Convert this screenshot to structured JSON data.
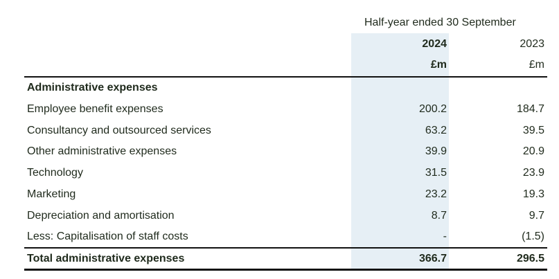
{
  "header": {
    "period": "Half-year ended 30 September",
    "col_current_year": "2024",
    "col_prior_year": "2023",
    "col_current_unit": "£m",
    "col_prior_unit": "£m"
  },
  "section_title": "Administrative expenses",
  "rows": [
    {
      "label": "Employee benefit expenses",
      "current": "200.2",
      "prior": "184.7"
    },
    {
      "label": "Consultancy and outsourced services",
      "current": "63.2",
      "prior": "39.5"
    },
    {
      "label": "Other administrative expenses",
      "current": "39.9",
      "prior": "20.9"
    },
    {
      "label": "Technology",
      "current": "31.5",
      "prior": "23.9"
    },
    {
      "label": "Marketing",
      "current": "23.2",
      "prior": "19.3"
    },
    {
      "label": "Depreciation and amortisation",
      "current": "8.7",
      "prior": "9.7"
    },
    {
      "label": "Less: Capitalisation of staff costs",
      "current": "-",
      "prior": "(1.5)"
    }
  ],
  "total": {
    "label": "Total administrative expenses",
    "current": "366.7",
    "prior": "296.5"
  }
}
